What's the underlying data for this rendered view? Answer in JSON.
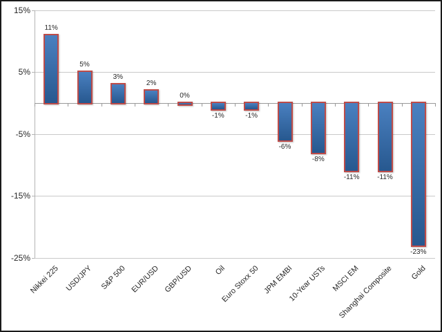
{
  "chart_data": {
    "type": "bar",
    "title": "",
    "categories": [
      "Nikkei 225",
      "USD/JPY",
      "S&P 500",
      "EUR/USD",
      "GBP/USD",
      "Oil",
      "Euro Stoxx 50",
      "JPM EMBI",
      "10-Year USTs",
      "MSCI EM",
      "Shanghai Composite",
      "Gold"
    ],
    "values": [
      11,
      5,
      3,
      2,
      0,
      -1,
      -1,
      -6,
      -8,
      -11,
      -11,
      -23
    ],
    "data_labels": [
      "11%",
      "5%",
      "3%",
      "2%",
      "0%",
      "-1%",
      "-1%",
      "-6%",
      "-8%",
      "-11%",
      "-11%",
      "-23%"
    ],
    "xlabel": "",
    "ylabel": "",
    "y_axis": {
      "min": -25,
      "max": 15,
      "tick_values": [
        15,
        5,
        -5,
        -15,
        -25
      ],
      "tick_labels": [
        "15%",
        "5%",
        "-5%",
        "-15%",
        "-25%"
      ]
    },
    "grid": true,
    "legend": "none",
    "colors": {
      "bar_fill_top": "#4A80C0",
      "bar_fill_bottom": "#27588F",
      "bar_border": "#BE4B48",
      "gridline": "#C9C9C9",
      "axis_line": "#B3B3B3",
      "zero_line": "#999999",
      "text": "#262626",
      "background": "#FFFFFF",
      "chart_border": "#1A1A1A"
    }
  }
}
